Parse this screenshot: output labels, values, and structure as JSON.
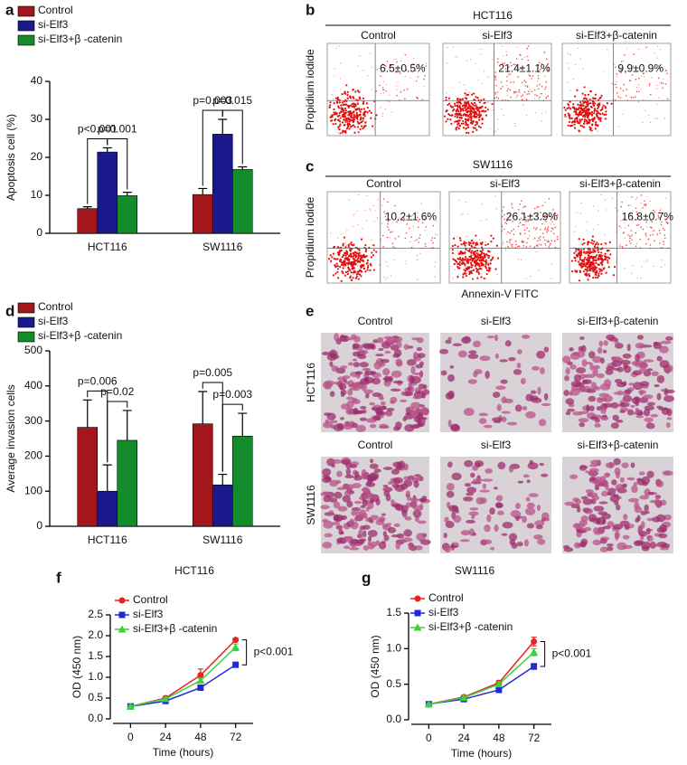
{
  "chart_data": [
    {
      "type": "bar",
      "panel_label": "a",
      "y_label": "Apoptosis cell (%)",
      "categories": [
        "HCT116",
        "SW1116"
      ],
      "series": [
        {
          "name": "Control",
          "color": "#a3161b",
          "values": [
            6.5,
            10.2
          ],
          "errors": [
            0.5,
            1.6
          ]
        },
        {
          "name": "si-Elf3",
          "color": "#1a1a8c",
          "values": [
            21.4,
            26.1
          ],
          "errors": [
            1.1,
            3.9
          ]
        },
        {
          "name": "si-Elf3+β -catenin",
          "color": "#158c2c",
          "values": [
            9.9,
            16.8
          ],
          "errors": [
            0.9,
            0.7
          ]
        }
      ],
      "ylim": [
        0,
        40
      ],
      "yticks": [
        0,
        10,
        20,
        30,
        40
      ],
      "annotations": [
        "p<0.001",
        "p=0.001",
        "p=0.003",
        "p=0.015"
      ]
    },
    {
      "type": "bar",
      "panel_label": "d",
      "y_label": "Average invasion cells",
      "categories": [
        "HCT116",
        "SW1116"
      ],
      "series": [
        {
          "name": "Control",
          "color": "#a3161b",
          "values": [
            282,
            292
          ],
          "errors": [
            78,
            92
          ]
        },
        {
          "name": "si-Elf3",
          "color": "#1a1a8c",
          "values": [
            100,
            118
          ],
          "errors": [
            75,
            30
          ]
        },
        {
          "name": "si-Elf3+β -catenin",
          "color": "#158c2c",
          "values": [
            245,
            257
          ],
          "errors": [
            85,
            65
          ]
        }
      ],
      "ylim": [
        0,
        500
      ],
      "yticks": [
        0,
        100,
        200,
        300,
        400,
        500
      ],
      "annotations": [
        "p=0.006",
        "p=0.02",
        "p=0.005",
        "p=0.003"
      ]
    },
    {
      "type": "line",
      "panel_label": "f",
      "title": "HCT116",
      "x_label": "Time (hours)",
      "y_label": "OD (450 nm)",
      "x": [
        0,
        24,
        48,
        72
      ],
      "xlim": [
        -12,
        84
      ],
      "xticks": [
        0,
        24,
        48,
        72
      ],
      "series": [
        {
          "name": "Control",
          "color": "#e8231f",
          "marker": "circle",
          "values": [
            0.3,
            0.5,
            1.05,
            1.9
          ],
          "errors": [
            0.02,
            0.03,
            0.15,
            0.03
          ]
        },
        {
          "name": "si-Elf3",
          "color": "#1f2bd6",
          "marker": "square",
          "values": [
            0.3,
            0.43,
            0.75,
            1.3
          ],
          "errors": [
            0.02,
            0.02,
            0.03,
            0.06
          ]
        },
        {
          "name": "si-Elf3+β -catenin",
          "color": "#3dd13d",
          "marker": "triangle",
          "values": [
            0.3,
            0.48,
            0.92,
            1.72
          ],
          "errors": [
            0.02,
            0.02,
            0.05,
            0.08
          ]
        }
      ],
      "ylim": [
        0,
        2.5
      ],
      "yticks": [
        {
          "value": 0,
          "label": "0.0"
        },
        {
          "value": 0.5,
          "label": "0.5"
        },
        {
          "value": 1,
          "label": "1.0"
        },
        {
          "value": 1.5,
          "label": "1.5"
        },
        {
          "value": 2,
          "label": "2.0"
        },
        {
          "value": 2.5,
          "label": "2.5"
        }
      ],
      "annotations": [
        "p<0.001"
      ]
    },
    {
      "type": "line",
      "panel_label": "g",
      "title": "SW1116",
      "x_label": "Time (hours)",
      "y_label": "OD (450 nm)",
      "x": [
        0,
        24,
        48,
        72
      ],
      "xlim": [
        -12,
        84
      ],
      "xticks": [
        0,
        24,
        48,
        72
      ],
      "series": [
        {
          "name": "Control",
          "color": "#e8231f",
          "marker": "circle",
          "values": [
            0.22,
            0.32,
            0.52,
            1.1
          ],
          "errors": [
            0.01,
            0.02,
            0.03,
            0.06
          ]
        },
        {
          "name": "si-Elf3",
          "color": "#1f2bd6",
          "marker": "square",
          "values": [
            0.22,
            0.29,
            0.42,
            0.75
          ],
          "errors": [
            0.01,
            0.01,
            0.02,
            0.04
          ]
        },
        {
          "name": "si-Elf3+β -catenin",
          "color": "#3dd13d",
          "marker": "triangle",
          "values": [
            0.22,
            0.31,
            0.5,
            0.95
          ],
          "errors": [
            0.01,
            0.02,
            0.03,
            0.05
          ]
        }
      ],
      "ylim": [
        0,
        1.5
      ],
      "yticks": [
        {
          "value": 0,
          "label": "0.0"
        },
        {
          "value": 0.5,
          "label": "0.5"
        },
        {
          "value": 1,
          "label": "1.0"
        },
        {
          "value": 1.5,
          "label": "1.5"
        }
      ],
      "annotations": [
        "p<0.001"
      ]
    }
  ],
  "flow_panels": [
    {
      "panel_label": "b",
      "title": "HCT116",
      "y_label": "Propidium iodide",
      "plots": [
        {
          "label": "Control",
          "value": "6.5±0.5%"
        },
        {
          "label": "si-Elf3",
          "value": "21.4±1.1%"
        },
        {
          "label": "si-Elf3+β-catenin",
          "value": "9.9±0.9%"
        }
      ]
    },
    {
      "panel_label": "c",
      "title": "SW1116",
      "y_label": "Propidium iodide",
      "x_label": "Annexin-V FITC",
      "plots": [
        {
          "label": "Control",
          "value": "10.2±1.6%"
        },
        {
          "label": "si-Elf3",
          "value": "26.1±3.9%"
        },
        {
          "label": "si-Elf3+β-catenin",
          "value": "16.8±0.7%"
        }
      ]
    }
  ],
  "invasion_panel": {
    "panel_label": "e",
    "columns": [
      "Control",
      "si-Elf3",
      "si-Elf3+β-catenin"
    ],
    "rows": [
      "HCT116",
      "SW1116"
    ]
  }
}
